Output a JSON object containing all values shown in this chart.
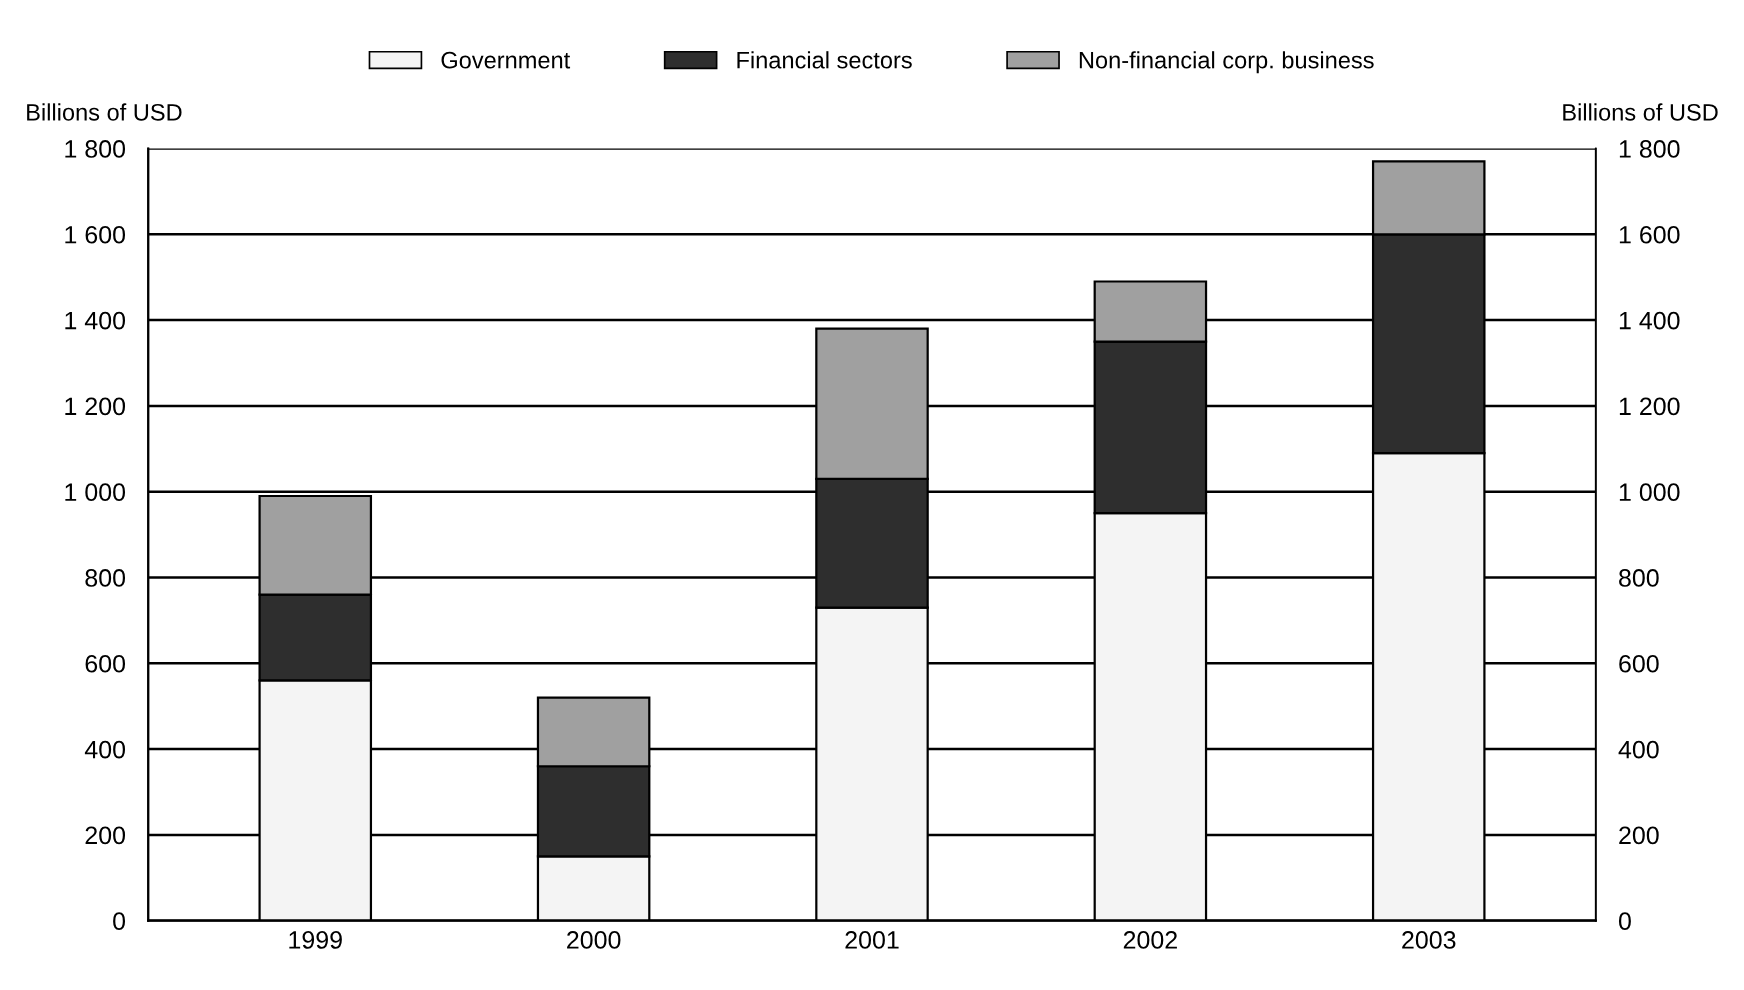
{
  "chart_data": {
    "type": "bar",
    "stacked": true,
    "categories": [
      "1999",
      "2000",
      "2001",
      "2002",
      "2003"
    ],
    "series": [
      {
        "name": "Government",
        "color": "#f4f4f4",
        "values": [
          560,
          150,
          730,
          950,
          1090
        ]
      },
      {
        "name": "Financial sectors",
        "color": "#2e2e2e",
        "values": [
          200,
          210,
          300,
          400,
          510
        ]
      },
      {
        "name": "Non-financial corp. business",
        "color": "#a0a0a0",
        "values": [
          230,
          160,
          350,
          140,
          170
        ]
      }
    ],
    "ylabel": "Billions of USD",
    "y2label": "Billions of USD",
    "ylim": [
      0,
      1800
    ],
    "yticks": [
      0,
      200,
      400,
      600,
      800,
      {
        "value": 1000,
        "label": "1 000"
      },
      {
        "value": 1200,
        "label": "1 200"
      },
      {
        "value": 1400,
        "label": "1 400"
      },
      {
        "value": 1600,
        "label": "1 600"
      },
      {
        "value": 1800,
        "label": "1 800"
      }
    ],
    "y2lim": [
      0,
      1800
    ],
    "y2ticks": [
      0,
      200,
      400,
      600,
      800,
      {
        "value": 1000,
        "label": "1 000"
      },
      {
        "value": 1200,
        "label": "1 200"
      },
      {
        "value": 1400,
        "label": "1 400"
      },
      {
        "value": 1600,
        "label": "1 600"
      },
      {
        "value": 1800,
        "label": "1 800"
      }
    ],
    "grid": "y",
    "legend": "top"
  }
}
